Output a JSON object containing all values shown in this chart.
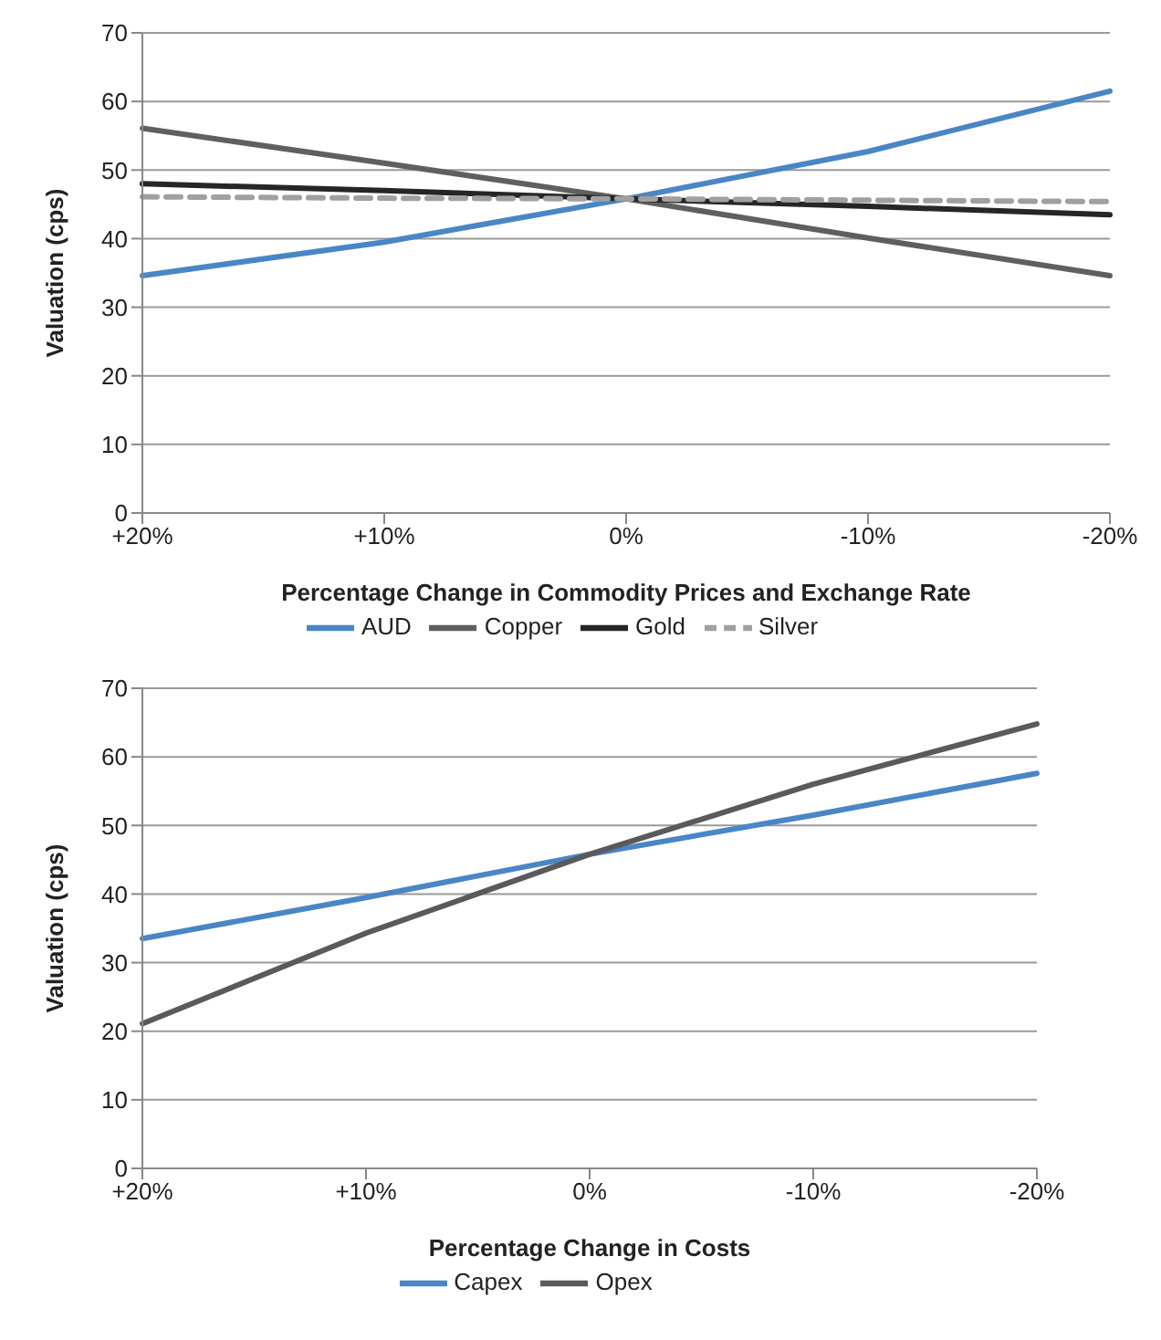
{
  "chart_data": [
    {
      "type": "line",
      "xlabel": "Percentage Change in Commodity Prices and Exchange Rate",
      "ylabel": "Valuation (cps)",
      "categories": [
        "+20%",
        "+10%",
        "0%",
        "-10%",
        "-20%"
      ],
      "ylim": [
        0,
        70
      ],
      "yticks": [
        0,
        10,
        20,
        30,
        40,
        50,
        60,
        70
      ],
      "grid": "y",
      "legend": "bottom",
      "marker": "none",
      "series": [
        {
          "name": "AUD",
          "color": "#4a86c5",
          "values": [
            34.6,
            39.5,
            45.8,
            52.7,
            61.5
          ]
        },
        {
          "name": "Copper",
          "color": "#5f5f5f",
          "values": [
            56.1,
            51.0,
            45.8,
            40.1,
            34.6
          ]
        },
        {
          "name": "Gold",
          "color": "#262626",
          "values": [
            48.0,
            47.0,
            45.8,
            44.7,
            43.5
          ]
        },
        {
          "name": "Silver",
          "color": "#a0a0a0",
          "values": [
            46.1,
            45.9,
            45.8,
            45.6,
            45.4
          ],
          "line_style": "dashed"
        }
      ]
    },
    {
      "type": "line",
      "xlabel": "Percentage Change in Costs",
      "ylabel": "Valuation (cps)",
      "categories": [
        "+20%",
        "+10%",
        "0%",
        "-10%",
        "-20%"
      ],
      "ylim": [
        0,
        70
      ],
      "yticks": [
        0,
        10,
        20,
        30,
        40,
        50,
        60,
        70
      ],
      "grid": "y",
      "legend": "bottom",
      "marker": "none",
      "series": [
        {
          "name": "Capex",
          "color": "#4a86c5",
          "values": [
            33.5,
            39.5,
            45.8,
            51.5,
            57.6
          ]
        },
        {
          "name": "Opex",
          "color": "#5a5a5a",
          "values": [
            21.1,
            34.3,
            45.8,
            56.0,
            64.8
          ]
        }
      ]
    }
  ]
}
